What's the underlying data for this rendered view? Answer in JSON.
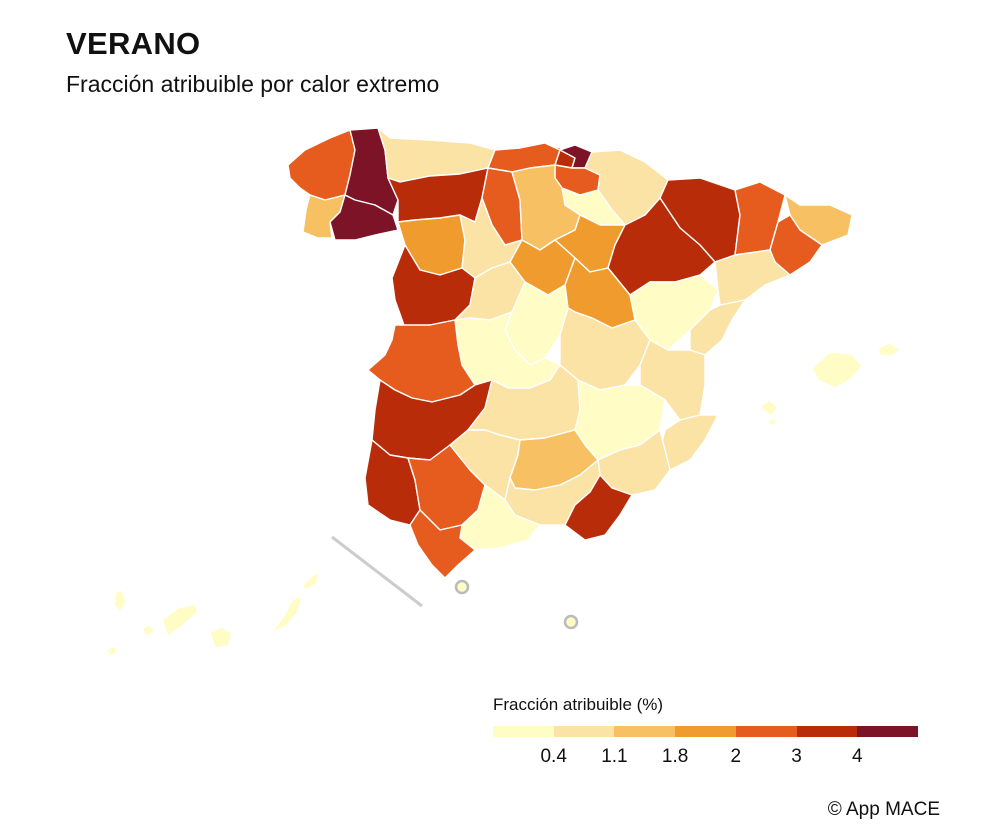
{
  "header": {
    "title": "VERANO",
    "subtitle": "Fracción atribuible por calor extremo"
  },
  "legend": {
    "title": "Fracción atribuible (%)",
    "colors": [
      "#fffcc6",
      "#fbe3a6",
      "#f6c063",
      "#ef9b2e",
      "#e65b1e",
      "#b92c09",
      "#7c1326"
    ],
    "ticks": [
      "0.4",
      "1.1",
      "1.8",
      "2",
      "3",
      "4"
    ]
  },
  "map_data": {
    "region": "España",
    "provinces_class": [
      {
        "name": "A Coruña",
        "class": 4
      },
      {
        "name": "Lugo",
        "class": 6
      },
      {
        "name": "Pontevedra",
        "class": 2
      },
      {
        "name": "Ourense",
        "class": 6
      },
      {
        "name": "Asturias",
        "class": 1
      },
      {
        "name": "Cantabria",
        "class": 4
      },
      {
        "name": "Bizkaia",
        "class": 5
      },
      {
        "name": "Gipuzkoa",
        "class": 6
      },
      {
        "name": "Álava",
        "class": 4
      },
      {
        "name": "Navarra",
        "class": 1
      },
      {
        "name": "La Rioja",
        "class": 0
      },
      {
        "name": "León",
        "class": 5
      },
      {
        "name": "Palencia",
        "class": 4
      },
      {
        "name": "Burgos",
        "class": 2
      },
      {
        "name": "Zamora",
        "class": 3
      },
      {
        "name": "Valladolid",
        "class": 1
      },
      {
        "name": "Soria",
        "class": 3
      },
      {
        "name": "Segovia",
        "class": 3
      },
      {
        "name": "Salamanca",
        "class": 5
      },
      {
        "name": "Ávila",
        "class": 1
      },
      {
        "name": "Huesca",
        "class": 5
      },
      {
        "name": "Zaragoza",
        "class": 5
      },
      {
        "name": "Teruel",
        "class": 0
      },
      {
        "name": "Lleida",
        "class": 4
      },
      {
        "name": "Girona",
        "class": 2
      },
      {
        "name": "Barcelona",
        "class": 4
      },
      {
        "name": "Tarragona",
        "class": 1
      },
      {
        "name": "Madrid",
        "class": 0
      },
      {
        "name": "Guadalajara",
        "class": 3
      },
      {
        "name": "Cuenca",
        "class": 1
      },
      {
        "name": "Toledo",
        "class": 0
      },
      {
        "name": "Cáceres",
        "class": 4
      },
      {
        "name": "Badajoz",
        "class": 5
      },
      {
        "name": "Castellón",
        "class": 1
      },
      {
        "name": "Valencia",
        "class": 1
      },
      {
        "name": "Alicante",
        "class": 1
      },
      {
        "name": "Ciudad Real",
        "class": 1
      },
      {
        "name": "Albacete",
        "class": 0
      },
      {
        "name": "Murcia",
        "class": 1
      },
      {
        "name": "Huelva",
        "class": 5
      },
      {
        "name": "Sevilla",
        "class": 4
      },
      {
        "name": "Córdoba",
        "class": 1
      },
      {
        "name": "Jaén",
        "class": 2
      },
      {
        "name": "Granada",
        "class": 1
      },
      {
        "name": "Almería",
        "class": 5
      },
      {
        "name": "Málaga",
        "class": 0
      },
      {
        "name": "Cádiz",
        "class": 4
      },
      {
        "name": "Illes Balears",
        "class": 0
      },
      {
        "name": "Canarias",
        "class": 0
      },
      {
        "name": "Ceuta",
        "class": 0
      },
      {
        "name": "Melilla",
        "class": 0
      }
    ]
  },
  "credit": "© App MACE"
}
